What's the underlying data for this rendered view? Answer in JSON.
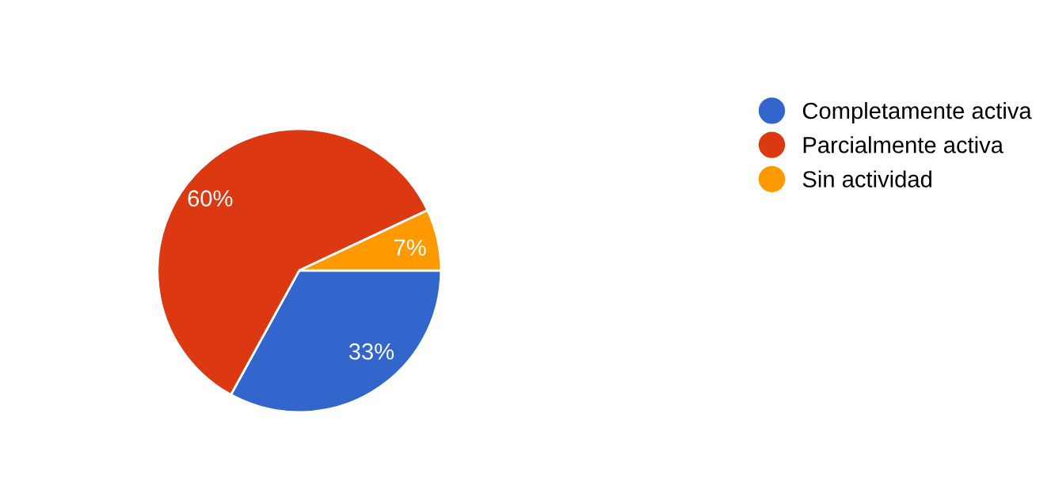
{
  "chart_data": {
    "type": "pie",
    "categories": [
      "Completamente activa",
      "Parcialmente activa",
      "Sin actividad"
    ],
    "values": [
      33,
      60,
      7
    ],
    "colors": [
      "#3366cc",
      "#dc3912",
      "#ff9900"
    ],
    "value_labels": [
      "33%",
      "60%",
      "7%"
    ],
    "legend": "right"
  }
}
